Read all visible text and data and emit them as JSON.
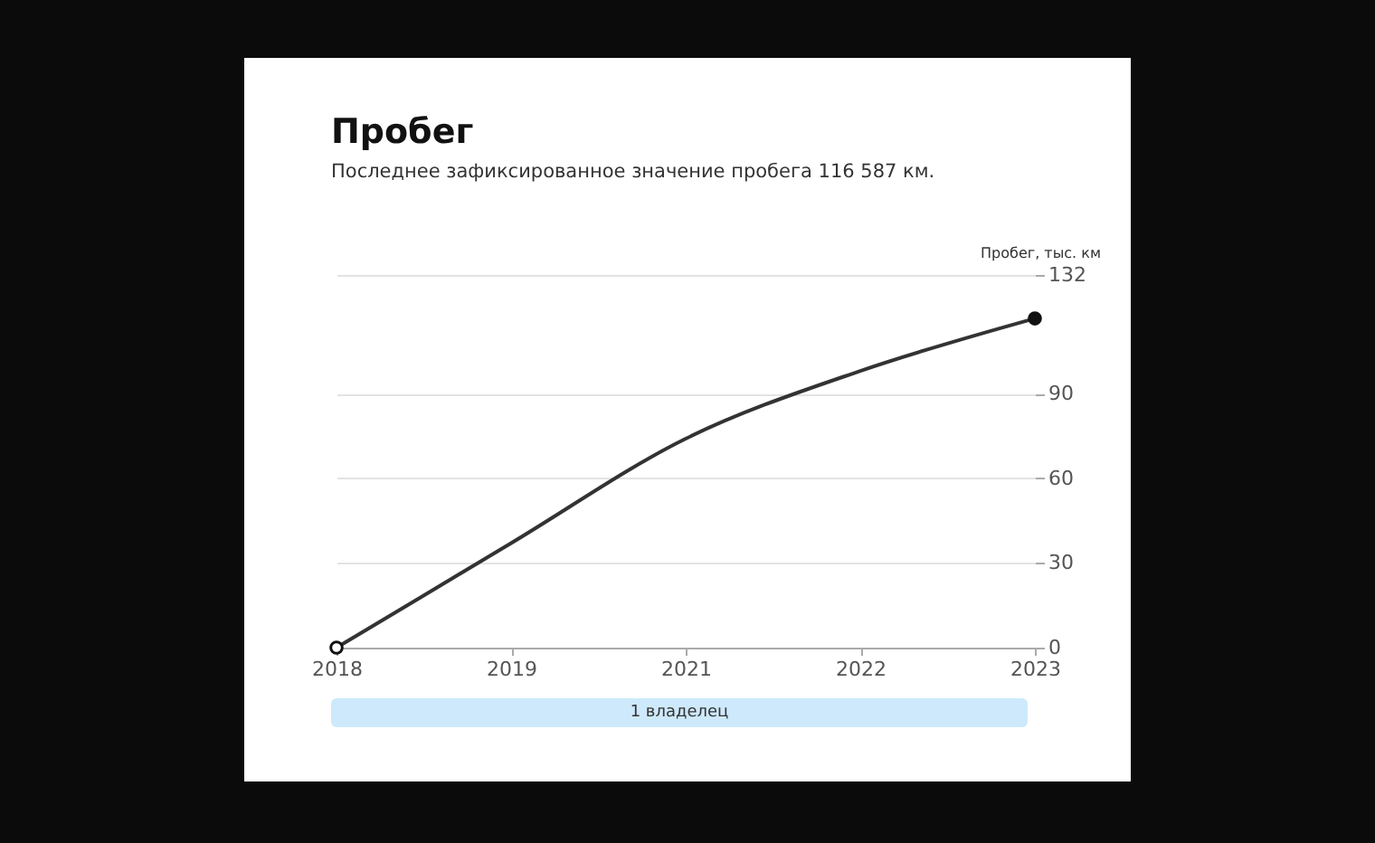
{
  "chart_data": {
    "type": "line",
    "title": "Пробег",
    "subtitle": "Последнее зафиксированное значение пробега 116 587 км.",
    "ylabel": "Пробег, тыс. км",
    "categories": [
      "2018",
      "2019",
      "2021",
      "2022",
      "2023"
    ],
    "series": [
      {
        "color": "#333333",
        "values": [
          0,
          37,
          74,
          98,
          116.6
        ]
      },
      {
        "type": "scatter",
        "color": "#ffffff",
        "values": [
          0,
          null,
          null,
          null,
          null
        ]
      },
      {
        "type": "scatter",
        "color": "#111111",
        "values": [
          null,
          null,
          null,
          null,
          116.6
        ]
      }
    ],
    "ylim": [
      0,
      132
    ],
    "yticks": [
      0,
      30,
      60,
      90,
      132
    ],
    "grid": "y",
    "annotations": [
      "1 владелец"
    ]
  }
}
